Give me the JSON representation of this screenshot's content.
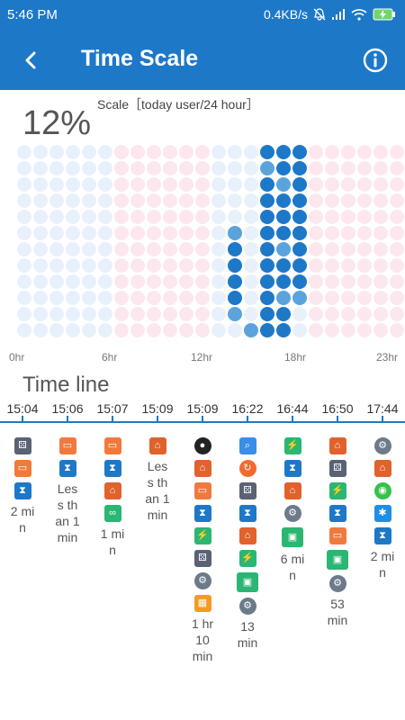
{
  "status": {
    "time": "5:46 PM",
    "speed": "0.4KB/s"
  },
  "header": {
    "title": "Time Scale"
  },
  "usage": {
    "percent": "12%",
    "scale_label": "Scale［today user/24 hour］"
  },
  "axis": {
    "labels": [
      "0hr",
      "6hr",
      "12hr",
      "18hr",
      "23hr"
    ]
  },
  "colors": {
    "brand": "#1e78c8",
    "dark_dot": "#1e78c8",
    "light_dot": "#5ba3dc",
    "bg_blue": "#e8f1fb",
    "bg_pink": "#fde7ee"
  },
  "timeline": {
    "title": "Time line",
    "entries": [
      {
        "time": "15:04",
        "icons": [
          "gallery-icon",
          "shopping-bag-icon",
          "hourglass-icon"
        ],
        "duration": "2 min"
      },
      {
        "time": "15:06",
        "icons": [
          "shopping-bag-icon",
          "hourglass-icon"
        ],
        "duration": "Less than 1 min"
      },
      {
        "time": "15:07",
        "icons": [
          "shopping-bag-icon",
          "hourglass-icon",
          "home-icon",
          "infinity-icon"
        ],
        "duration": "1 min"
      },
      {
        "time": "15:09",
        "icons": [
          "home-icon"
        ],
        "duration": "Less than 1 min"
      },
      {
        "time": "15:09",
        "icons": [
          "penguin-icon",
          "home-icon",
          "shopping-bag-icon",
          "hourglass-icon",
          "security-shield-icon",
          "gallery-icon",
          "settings-gear-icon",
          "calculator-icon"
        ],
        "duration": "1 hr 10 min"
      },
      {
        "time": "16:22",
        "icons": [
          "search-icon",
          "refresh-icon",
          "gallery-icon",
          "hourglass-icon",
          "home-icon",
          "security-shield-icon",
          "android-icon",
          "settings-gear-icon"
        ],
        "duration": "13 min"
      },
      {
        "time": "16:44",
        "icons": [
          "security-shield-icon",
          "hourglass-icon",
          "home-icon",
          "settings-gear-icon",
          "android-icon"
        ],
        "duration": "6 min"
      },
      {
        "time": "16:50",
        "icons": [
          "home-icon",
          "gallery-icon",
          "security-shield-icon",
          "hourglass-icon",
          "shopping-bag-icon",
          "android-icon",
          "settings-gear-icon"
        ],
        "duration": "53 min"
      },
      {
        "time": "17:44",
        "icons": [
          "settings-gear-icon",
          "home-icon",
          "wechat-icon",
          "star-badge-icon",
          "hourglass-icon"
        ],
        "duration": "2 min"
      }
    ]
  },
  "usage_grid": {
    "columns": 24,
    "rows": 12,
    "filled": [
      {
        "col": 13,
        "row_from": 5,
        "row_to": 10,
        "light_rows": [
          5,
          10
        ]
      },
      {
        "col": 14,
        "row_from": 11,
        "row_to": 11,
        "light_rows": [
          11
        ]
      },
      {
        "col": 15,
        "row_from": 0,
        "row_to": 11,
        "light_rows": [
          1
        ]
      },
      {
        "col": 16,
        "row_from": 0,
        "row_to": 11,
        "light_rows": [
          2,
          6,
          9
        ]
      },
      {
        "col": 17,
        "row_from": 0,
        "row_to": 9,
        "light_rows": [
          9
        ]
      }
    ]
  }
}
